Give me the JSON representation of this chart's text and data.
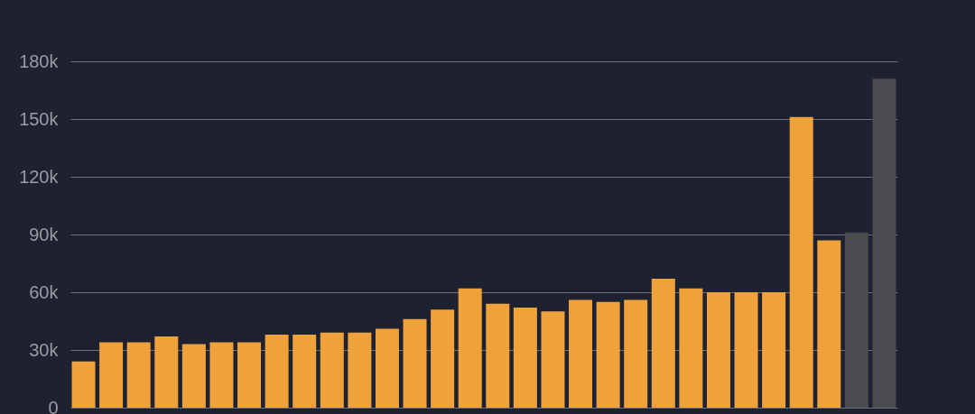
{
  "chart_data": {
    "type": "bar",
    "categories": [
      null,
      null,
      null,
      null,
      null,
      null,
      null,
      null,
      null,
      null,
      null,
      null,
      null,
      null,
      null,
      null,
      null,
      null,
      null,
      null,
      null,
      null,
      null,
      null,
      null,
      null,
      null,
      null,
      null,
      null
    ],
    "values": [
      24000,
      34000,
      34000,
      37000,
      33000,
      34000,
      34000,
      38000,
      38000,
      39000,
      39000,
      41000,
      46000,
      51000,
      62000,
      54000,
      52000,
      50000,
      56000,
      55000,
      56000,
      67000,
      62000,
      60000,
      60000,
      60000,
      151000,
      87000,
      91000,
      171000
    ],
    "colors": [
      "#f0a23a",
      "#f0a23a",
      "#f0a23a",
      "#f0a23a",
      "#f0a23a",
      "#f0a23a",
      "#f0a23a",
      "#f0a23a",
      "#f0a23a",
      "#f0a23a",
      "#f0a23a",
      "#f0a23a",
      "#f0a23a",
      "#f0a23a",
      "#f0a23a",
      "#f0a23a",
      "#f0a23a",
      "#f0a23a",
      "#f0a23a",
      "#f0a23a",
      "#f0a23a",
      "#f0a23a",
      "#f0a23a",
      "#f0a23a",
      "#f0a23a",
      "#f0a23a",
      "#f0a23a",
      "#f0a23a",
      "#4a4b4f",
      "#4a4b4f"
    ],
    "ylim": [
      0,
      180000
    ],
    "yticks": [
      0,
      {
        "value": 30000,
        "label": "30k"
      },
      {
        "value": 60000,
        "label": "60k"
      },
      {
        "value": 90000,
        "label": "90k"
      },
      {
        "value": 120000,
        "label": "120k"
      },
      {
        "value": 150000,
        "label": "150k"
      },
      {
        "value": 180000,
        "label": "180k"
      }
    ],
    "grid": "y",
    "tick_labels": "y"
  }
}
